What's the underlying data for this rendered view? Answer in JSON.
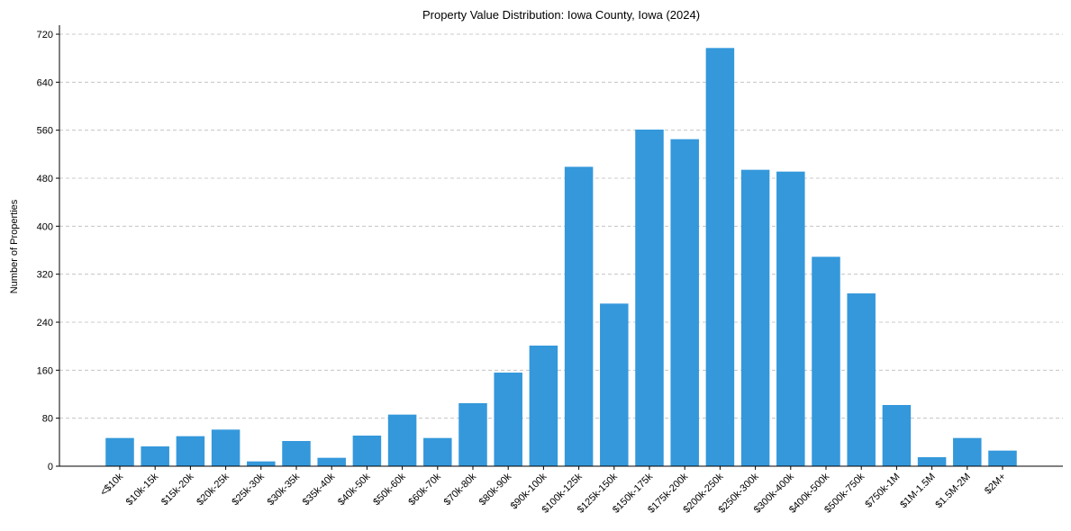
{
  "chart_data": {
    "type": "bar",
    "title": "Property Value Distribution: Iowa County, Iowa (2024)",
    "xlabel": "",
    "ylabel": "Number of Properties",
    "ylim": [
      0,
      735
    ],
    "yticks": [
      0,
      80,
      160,
      240,
      320,
      400,
      480,
      560,
      640,
      720
    ],
    "grid": "y-dashed",
    "bar_color": "#3498db",
    "categories": [
      "<$10k",
      "$10k-15k",
      "$15k-20k",
      "$20k-25k",
      "$25k-30k",
      "$30k-35k",
      "$35k-40k",
      "$40k-50k",
      "$50k-60k",
      "$60k-70k",
      "$70k-80k",
      "$80k-90k",
      "$90k-100k",
      "$100k-125k",
      "$125k-150k",
      "$150k-175k",
      "$175k-200k",
      "$200k-250k",
      "$250k-300k",
      "$300k-400k",
      "$400k-500k",
      "$500k-750k",
      "$750k-1M",
      "$1M-1.5M",
      "$1.5M-2M",
      "$2M+"
    ],
    "values": [
      47,
      33,
      50,
      61,
      8,
      42,
      14,
      51,
      86,
      47,
      105,
      156,
      201,
      499,
      271,
      561,
      545,
      697,
      494,
      491,
      349,
      288,
      102,
      15,
      47,
      26
    ]
  }
}
